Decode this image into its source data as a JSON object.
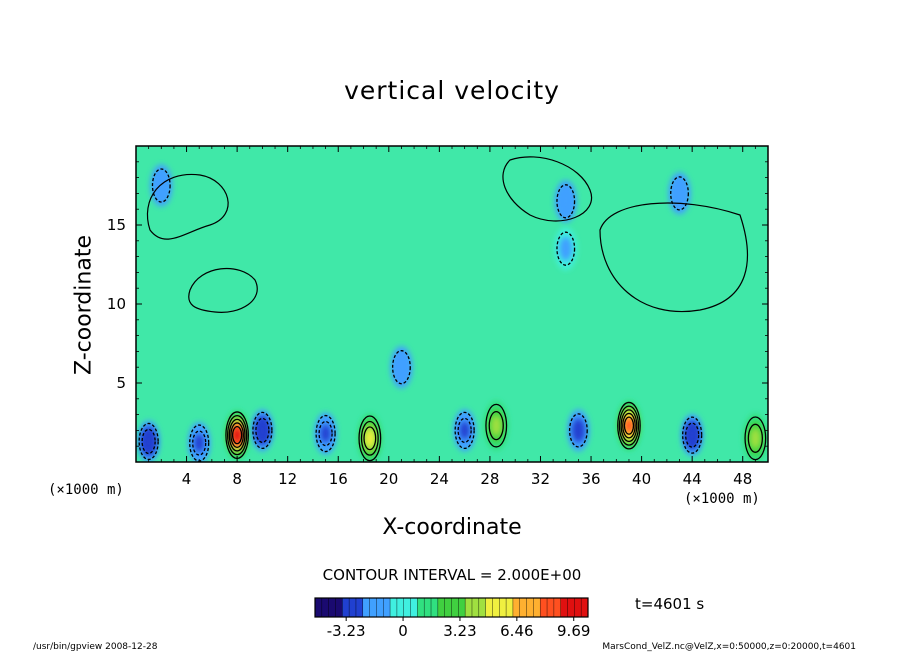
{
  "chart_data": {
    "type": "heatmap",
    "title": "vertical velocity",
    "xlabel": "X-coordinate",
    "ylabel": "Z-coordinate",
    "x_unit_left": "(×1000 m)",
    "x_unit_right": "(×1000 m)",
    "xlim": [
      0,
      50
    ],
    "ylim": [
      0,
      20
    ],
    "x_ticks": [
      4,
      8,
      12,
      16,
      20,
      24,
      28,
      32,
      36,
      40,
      44,
      48
    ],
    "y_ticks": [
      5,
      10,
      15
    ],
    "contour_interval_text": "CONTOUR INTERVAL = 2.000E+00",
    "time_text": "t=4601 s",
    "colorbar": {
      "min": -5,
      "max": 10.5,
      "ticks": [
        "-3.23",
        "0",
        "3.23",
        "6.46",
        "9.69"
      ],
      "tick_values": [
        -3.23,
        0,
        3.23,
        6.46,
        9.69
      ],
      "colors": [
        "#1a0a70",
        "#2040d0",
        "#40a0ff",
        "#40f0e0",
        "#30e080",
        "#40d040",
        "#a0e040",
        "#f0f040",
        "#ffb030",
        "#ff5020",
        "#e01010"
      ]
    },
    "background_color": "#40e8a8",
    "features": [
      {
        "x": 8,
        "z": 1.7,
        "value": 9.5,
        "kind": "updraft"
      },
      {
        "x": 18.5,
        "z": 1.5,
        "value": 5.5,
        "kind": "updraft"
      },
      {
        "x": 28.5,
        "z": 2.3,
        "value": 4.5,
        "kind": "updraft"
      },
      {
        "x": 39,
        "z": 2.3,
        "value": 9.0,
        "kind": "updraft"
      },
      {
        "x": 49,
        "z": 1.5,
        "value": 4.0,
        "kind": "updraft"
      },
      {
        "x": 1,
        "z": 1.3,
        "value": -3.5,
        "kind": "downdraft"
      },
      {
        "x": 5,
        "z": 1.2,
        "value": -3.0,
        "kind": "downdraft"
      },
      {
        "x": 10,
        "z": 2.0,
        "value": -3.5,
        "kind": "downdraft"
      },
      {
        "x": 15,
        "z": 1.8,
        "value": -3.0,
        "kind": "downdraft"
      },
      {
        "x": 26,
        "z": 2.0,
        "value": -3.0,
        "kind": "downdraft"
      },
      {
        "x": 35,
        "z": 2.0,
        "value": -2.8,
        "kind": "downdraft"
      },
      {
        "x": 44,
        "z": 1.7,
        "value": -3.3,
        "kind": "downdraft"
      },
      {
        "x": 2,
        "z": 17.5,
        "value": -2.0,
        "kind": "downdraft"
      },
      {
        "x": 43,
        "z": 17,
        "value": -2.0,
        "kind": "downdraft"
      },
      {
        "x": 34,
        "z": 16.5,
        "value": -1.8,
        "kind": "downdraft"
      },
      {
        "x": 34,
        "z": 13.5,
        "value": -1.5,
        "kind": "downdraft"
      },
      {
        "x": 21,
        "z": 6,
        "value": -2.0,
        "kind": "downdraft"
      }
    ]
  },
  "footer": {
    "left": "/usr/bin/gpview   2008-12-28",
    "right": "MarsCond_VelZ.nc@VelZ,x=0:50000,z=0:20000,t=4601"
  }
}
